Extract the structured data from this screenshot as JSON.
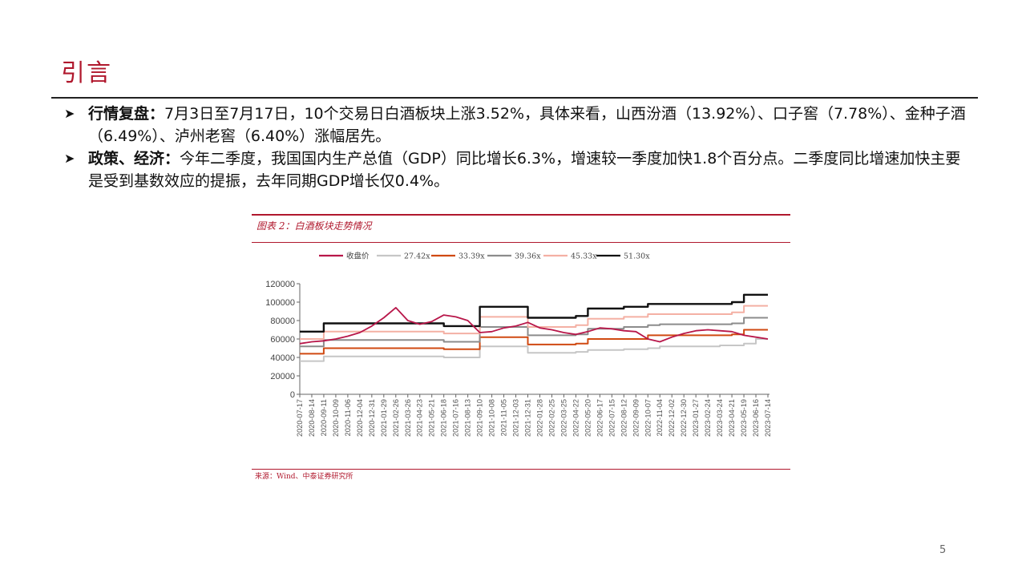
{
  "slide": {
    "title": "引言",
    "page_number": "5"
  },
  "bullets": [
    {
      "label": "行情复盘：",
      "text": "7月3日至7月17日，10个交易日白酒板块上涨3.52%，具体来看，山西汾酒（13.92%）、口子窖（7.78%）、金种子酒（6.49%）、泸州老窖（6.40%）涨幅居先。"
    },
    {
      "label": "政策、经济：",
      "text": "今年二季度，我国国内生产总值（GDP）同比增长6.3%，增速较一季度加快1.8个百分点。二季度同比增速加快主要是受到基数效应的提振，去年同期GDP增长仅0.4%。"
    }
  ],
  "chart": {
    "title": "图表 2：白酒板块走势情况",
    "source": "来源：Wind、中泰证券研究所"
  },
  "chart_data": {
    "type": "line",
    "ylim": [
      0,
      120000
    ],
    "yticks": [
      0,
      20000,
      40000,
      60000,
      80000,
      100000,
      120000
    ],
    "x_tick_labels": [
      "2020-07-17",
      "2020-08-14",
      "2020-09-11",
      "2020-10-09",
      "2020-11-06",
      "2020-12-04",
      "2020-12-31",
      "2021-01-29",
      "2021-02-26",
      "2021-03-26",
      "2021-04-23",
      "2021-05-21",
      "2021-06-18",
      "2021-07-16",
      "2021-08-13",
      "2021-09-10",
      "2021-10-08",
      "2021-11-05",
      "2021-12-03",
      "2021-12-31",
      "2022-01-28",
      "2022-02-25",
      "2022-03-25",
      "2022-04-22",
      "2022-05-20",
      "2022-06-17",
      "2022-07-15",
      "2022-08-12",
      "2022-09-09",
      "2022-10-07",
      "2022-11-04",
      "2022-12-02",
      "2022-12-30",
      "2023-01-27",
      "2023-02-24",
      "2023-03-24",
      "2023-04-21",
      "2023-05-19",
      "2023-06-16",
      "2023-07-14"
    ],
    "x_tick_labels_shown": [
      "2020-07-17",
      "2020-08-14",
      "2020-09-11",
      "2020-10-09",
      "2020-11-06",
      "2020-12-04",
      "2020-12-31",
      "2021-01-29",
      "2021-02-26",
      "2021-03-26",
      "2021-04-23",
      "2021-05-21",
      "2021-06-18",
      "2021-07-16",
      "2021-08-13",
      "2021-09-10",
      "2021-10-08",
      "2021-11-05",
      "2021-12-03",
      "2021-12-31",
      "2022-01-28",
      "2022-02-25",
      "2022-03-25",
      "2022-04-22",
      "2022-05-20",
      "2022-06-17",
      "2022-07-15",
      "2022-08-12",
      "2022-09-09",
      "2022-10-07",
      "2022-11-04",
      "2022-12-02",
      "2022-12-30",
      "2023-01-27",
      "2023-02-24",
      "2023-03-24",
      "2023-04-21",
      "2023-05-19",
      "2023-06-16",
      "2023-07-14"
    ],
    "legend_placement": "top",
    "grid": false,
    "series": [
      {
        "name": "27.42x",
        "color": "#c6c6c6",
        "values": [
          36000,
          36000,
          41000,
          41000,
          41000,
          41000,
          41000,
          41000,
          41000,
          41000,
          41000,
          41000,
          40000,
          40000,
          40000,
          52000,
          52000,
          52000,
          52000,
          45000,
          45000,
          45000,
          45000,
          46000,
          48000,
          48000,
          48000,
          49000,
          49000,
          50000,
          52000,
          52000,
          52000,
          52000,
          52000,
          53000,
          53000,
          55000,
          60000,
          60000
        ]
      },
      {
        "name": "33.39x",
        "color": "#d04a12",
        "values": [
          44000,
          44000,
          50000,
          50000,
          50000,
          50000,
          50000,
          50000,
          50000,
          50000,
          50000,
          50000,
          49000,
          49000,
          49000,
          62000,
          62000,
          62000,
          62000,
          54000,
          54000,
          54000,
          54000,
          55000,
          60000,
          60000,
          60000,
          60000,
          60000,
          64000,
          64000,
          64000,
          64000,
          64000,
          64000,
          64000,
          65000,
          70000,
          70000,
          70000
        ]
      },
      {
        "name": "39.36x",
        "color": "#8c8c8c",
        "values": [
          52000,
          52000,
          59000,
          59000,
          59000,
          59000,
          59000,
          59000,
          59000,
          59000,
          59000,
          59000,
          57000,
          57000,
          57000,
          73000,
          73000,
          73000,
          73000,
          64000,
          64000,
          64000,
          64000,
          65000,
          71000,
          71000,
          71000,
          73000,
          73000,
          75000,
          76000,
          76000,
          76000,
          76000,
          76000,
          76000,
          77000,
          83000,
          83000,
          83000
        ]
      },
      {
        "name": "45.33x",
        "color": "#f4b0a4",
        "values": [
          60000,
          60000,
          68000,
          68000,
          68000,
          68000,
          68000,
          68000,
          68000,
          68000,
          68000,
          68000,
          66000,
          66000,
          66000,
          84000,
          84000,
          84000,
          84000,
          73000,
          73000,
          73000,
          73000,
          75000,
          82000,
          82000,
          82000,
          84000,
          84000,
          87000,
          87000,
          87000,
          87000,
          87000,
          87000,
          87000,
          89000,
          96000,
          96000,
          96000
        ]
      },
      {
        "name": "51.30x",
        "color": "#111111",
        "values": [
          68000,
          68000,
          77000,
          77000,
          77000,
          77000,
          77000,
          77000,
          77000,
          77000,
          77000,
          77000,
          74000,
          74000,
          74000,
          95000,
          95000,
          95000,
          95000,
          83000,
          83000,
          83000,
          83000,
          85000,
          93000,
          93000,
          93000,
          95000,
          95000,
          98000,
          98000,
          98000,
          98000,
          98000,
          98000,
          98000,
          100000,
          108000,
          108000,
          108000
        ]
      },
      {
        "name": "收盘价",
        "color": "#b8174a",
        "values": [
          55000,
          57000,
          58000,
          60000,
          63000,
          67000,
          74000,
          83000,
          94000,
          80000,
          76000,
          79000,
          86000,
          84000,
          80000,
          67000,
          68000,
          72000,
          74000,
          78000,
          72000,
          70000,
          67000,
          65000,
          68000,
          72000,
          71000,
          69000,
          68000,
          60000,
          57000,
          62000,
          66000,
          69000,
          70000,
          69000,
          68000,
          64000,
          62000,
          60000
        ]
      }
    ]
  }
}
